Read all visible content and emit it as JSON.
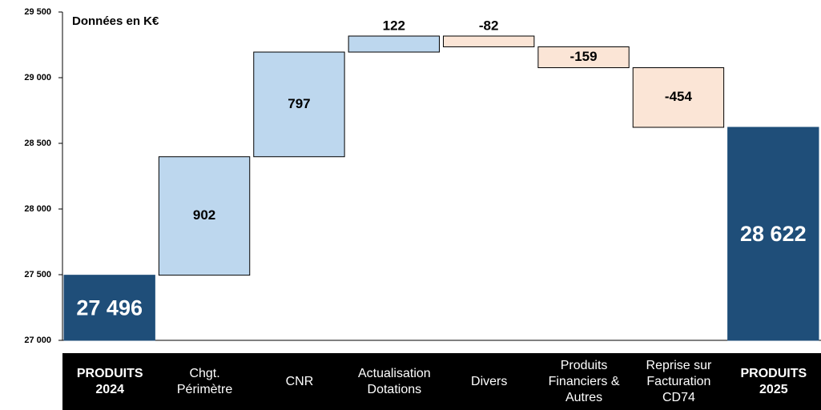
{
  "chart_data": {
    "type": "waterfall",
    "annotation": "Données en K€",
    "categories": [
      "PRODUITS 2024",
      "Chgt. Périmètre",
      "CNR",
      "Actualisation Dotations",
      "Divers",
      "Produits Financiers & Autres",
      "Reprise sur Facturation CD74",
      "PRODUITS 2025"
    ],
    "values": [
      27496,
      902,
      797,
      122,
      -82,
      -159,
      -454,
      28622
    ],
    "value_labels": [
      "27 496",
      "902",
      "797",
      "122",
      "-82",
      "-159",
      "-454",
      "28 622"
    ],
    "measure": [
      "total",
      "relative",
      "relative",
      "relative",
      "relative",
      "relative",
      "relative",
      "total"
    ],
    "colors": {
      "total": "#1f4e79",
      "increase": "#bdd7ee",
      "decrease": "#fbe5d6"
    },
    "ylim": [
      27000,
      29500
    ],
    "yticks": [
      {
        "value": 27000,
        "label": "27 000"
      },
      {
        "value": 27500,
        "label": "27 500"
      },
      {
        "value": 28000,
        "label": "28 000"
      },
      {
        "value": 28500,
        "label": "28 500"
      },
      {
        "value": 29000,
        "label": "29 000"
      },
      {
        "value": 29500,
        "label": "29 500"
      }
    ],
    "grid": false
  }
}
